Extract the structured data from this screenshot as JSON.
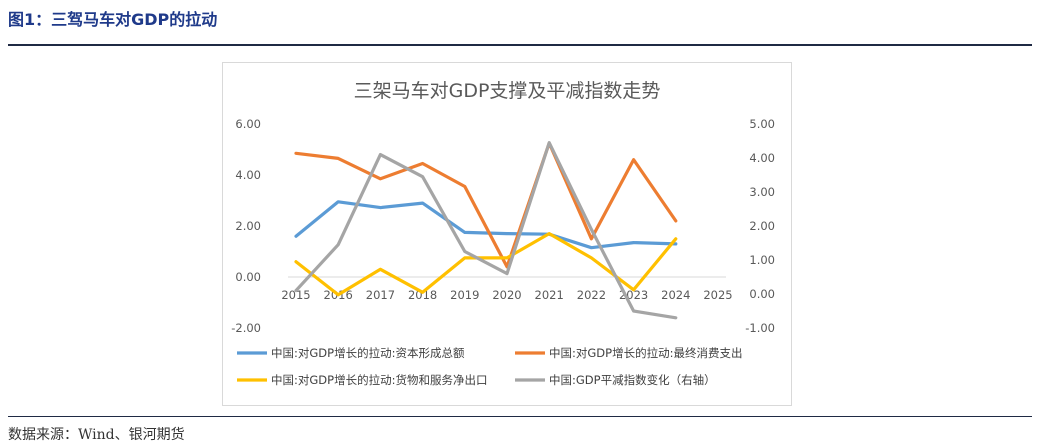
{
  "figure": {
    "title": "图1：三驾马车对GDP的拉动",
    "source": "数据来源：Wind、银河期货"
  },
  "chart_data": {
    "type": "line",
    "title": "三架马车对GDP支撑及平减指数走势",
    "x": [
      "2015",
      "2016",
      "2017",
      "2018",
      "2019",
      "2020",
      "2021",
      "2022",
      "2023",
      "2024",
      "2025"
    ],
    "left_axis": {
      "ylim": [
        -2,
        6
      ],
      "ticks": [
        "6.00",
        "4.00",
        "2.00",
        "0.00",
        "-2.00"
      ],
      "tick_values": [
        6,
        4,
        2,
        0,
        -2
      ]
    },
    "right_axis": {
      "ylim": [
        -1,
        5
      ],
      "ticks": [
        "5.00",
        "4.00",
        "3.00",
        "2.00",
        "1.00",
        "0.00",
        "-1.00"
      ],
      "tick_values": [
        5,
        4,
        3,
        2,
        1,
        0,
        -1
      ]
    },
    "grid": false,
    "legend_position": "bottom",
    "series": [
      {
        "name": "中国:对GDP增长的拉动:资本形成总额",
        "axis": "left",
        "color": "#5B9BD5",
        "values": [
          1.6,
          2.95,
          2.72,
          2.9,
          1.75,
          1.7,
          1.68,
          1.15,
          1.35,
          1.3,
          null
        ]
      },
      {
        "name": "中国:对GDP增长的拉动:最终消费支出",
        "axis": "left",
        "color": "#ED7D31",
        "values": [
          4.85,
          4.65,
          3.85,
          4.45,
          3.55,
          0.4,
          5.25,
          1.5,
          4.6,
          2.2,
          null
        ]
      },
      {
        "name": "中国:对GDP增长的拉动:货物和服务净出口",
        "axis": "left",
        "color": "#FFC000",
        "values": [
          0.6,
          -0.7,
          0.3,
          -0.6,
          0.75,
          0.75,
          1.7,
          0.75,
          -0.5,
          1.5,
          null
        ]
      },
      {
        "name": "中国:GDP平减指数变化（右轴）",
        "axis": "right",
        "color": "#A5A5A5",
        "values": [
          0.1,
          1.45,
          4.1,
          3.45,
          1.25,
          0.6,
          4.45,
          1.9,
          -0.5,
          -0.7,
          null
        ]
      }
    ]
  }
}
